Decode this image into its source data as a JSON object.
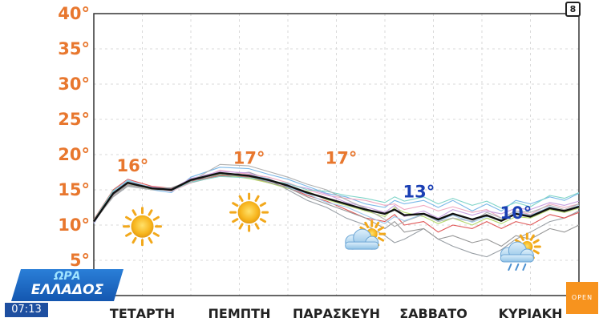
{
  "badge_number": "8",
  "clock_time": "07:13",
  "logo": {
    "line1": "ΩΡΑ",
    "line2": "ΕΛΛΑΔΟΣ"
  },
  "channel": "OPEN",
  "colors": {
    "ytick": "#e8772e",
    "mean_line": "#111111",
    "orange_annot": "#e8772e",
    "blue_annot": "#1a3fb4"
  },
  "chart_data": {
    "type": "line",
    "title": "",
    "xlabel": "",
    "ylabel": "",
    "ylim": [
      0,
      40
    ],
    "xlim": [
      0,
      5
    ],
    "grid": true,
    "yticks": [
      {
        "value": 40,
        "label": "40°"
      },
      {
        "value": 35,
        "label": "35°"
      },
      {
        "value": 30,
        "label": "30°"
      },
      {
        "value": 25,
        "label": "25°"
      },
      {
        "value": 20,
        "label": "20°"
      },
      {
        "value": 15,
        "label": "15°"
      },
      {
        "value": 10,
        "label": "10°"
      },
      {
        "value": 5,
        "label": "5°"
      }
    ],
    "xticks": [
      {
        "value": 0.5,
        "label": "ΤΕΤΑΡΤΗ"
      },
      {
        "value": 1.5,
        "label": "ΠΕΜΠΤΗ"
      },
      {
        "value": 2.5,
        "label": "ΠΑΡΑΣΚΕΥΗ"
      },
      {
        "value": 3.5,
        "label": "ΣΑΒΒΑΤΟ"
      },
      {
        "value": 4.5,
        "label": "ΚΥΡΙΑΚΗ"
      }
    ],
    "mean_series": {
      "x": [
        0,
        0.2,
        0.35,
        0.6,
        0.8,
        1.0,
        1.3,
        1.6,
        1.8,
        2.0,
        2.2,
        2.4,
        2.6,
        2.8,
        3.0,
        3.1,
        3.2,
        3.4,
        3.55,
        3.7,
        3.9,
        4.05,
        4.2,
        4.35,
        4.5,
        4.7,
        4.85,
        5.0
      ],
      "values": [
        10.5,
        14.5,
        16.0,
        15.2,
        15.0,
        16.4,
        17.4,
        17.0,
        16.4,
        15.6,
        14.6,
        13.8,
        13.0,
        12.2,
        11.6,
        12.2,
        11.4,
        11.6,
        10.8,
        11.6,
        10.8,
        11.4,
        10.6,
        11.6,
        11.2,
        12.4,
        12.0,
        12.6
      ]
    },
    "ensemble_series": [
      {
        "color": "#9aa0a6",
        "values": [
          10.5,
          14.0,
          15.5,
          15.0,
          15.2,
          16.0,
          17.0,
          17.5,
          16.5,
          15.0,
          13.5,
          12.5,
          11.0,
          10.0,
          8.5,
          7.5,
          8.0,
          9.5,
          8.0,
          7.0,
          6.0,
          5.5,
          6.5,
          8.0,
          9.0,
          10.5,
          11.0,
          12.0
        ]
      },
      {
        "color": "#7ab8e8",
        "values": [
          10.2,
          14.8,
          16.2,
          15.0,
          14.6,
          16.8,
          18.2,
          18.0,
          17.2,
          16.5,
          15.5,
          14.5,
          14.0,
          13.0,
          12.5,
          13.5,
          13.0,
          13.5,
          12.5,
          13.5,
          12.0,
          13.0,
          12.0,
          13.5,
          13.0,
          14.0,
          13.5,
          14.5
        ]
      },
      {
        "color": "#e05757",
        "values": [
          10.8,
          15.0,
          16.5,
          15.5,
          15.2,
          16.2,
          17.0,
          16.8,
          16.0,
          15.4,
          14.2,
          13.4,
          12.2,
          11.0,
          10.5,
          11.5,
          10.0,
          10.5,
          9.0,
          10.0,
          9.5,
          10.5,
          9.5,
          10.5,
          10.0,
          11.5,
          11.0,
          11.8
        ]
      },
      {
        "color": "#f0a8c0",
        "values": [
          10.4,
          14.2,
          15.8,
          15.3,
          14.8,
          16.0,
          17.8,
          17.2,
          16.8,
          16.0,
          15.0,
          14.2,
          13.8,
          13.5,
          12.8,
          13.0,
          12.2,
          12.8,
          12.0,
          12.6,
          11.8,
          12.2,
          11.0,
          12.0,
          11.5,
          13.0,
          12.5,
          13.0
        ]
      },
      {
        "color": "#b5d96e",
        "values": [
          10.6,
          14.6,
          15.9,
          15.1,
          15.0,
          16.5,
          17.2,
          16.6,
          16.0,
          15.2,
          14.8,
          13.6,
          12.8,
          12.0,
          11.2,
          12.5,
          11.8,
          11.2,
          10.2,
          11.0,
          10.0,
          11.0,
          10.2,
          11.2,
          11.0,
          12.2,
          11.8,
          12.4
        ]
      },
      {
        "color": "#c7a0e0",
        "values": [
          10.3,
          14.4,
          16.1,
          15.4,
          15.1,
          16.6,
          17.6,
          17.4,
          16.2,
          15.8,
          15.2,
          14.4,
          13.2,
          12.6,
          11.8,
          12.8,
          11.2,
          12.0,
          11.0,
          12.2,
          11.4,
          12.0,
          11.6,
          12.4,
          12.2,
          13.2,
          12.8,
          13.4
        ]
      },
      {
        "color": "#999999",
        "values": [
          10.5,
          14.3,
          15.7,
          15.2,
          15.3,
          16.3,
          17.1,
          16.9,
          16.1,
          15.3,
          14.0,
          13.0,
          12.0,
          11.0,
          9.5,
          10.5,
          9.0,
          9.5,
          8.0,
          8.5,
          7.5,
          8.0,
          7.0,
          8.5,
          8.0,
          9.5,
          9.0,
          10.0
        ]
      },
      {
        "color": "#7fd4c8",
        "values": [
          10.7,
          14.9,
          16.3,
          15.3,
          14.9,
          16.1,
          16.9,
          16.7,
          16.3,
          15.9,
          15.0,
          14.8,
          14.2,
          13.8,
          13.2,
          14.0,
          13.4,
          14.0,
          13.0,
          13.8,
          12.8,
          13.4,
          12.4,
          13.2,
          12.6,
          14.2,
          13.8,
          14.6
        ]
      },
      {
        "color": "#b0b0b0",
        "values": [
          10.4,
          14.1,
          15.6,
          15.0,
          15.0,
          16.2,
          18.6,
          18.4,
          17.6,
          16.8,
          15.8,
          15.0,
          13.6,
          12.4,
          10.8,
          9.8,
          10.5,
          11.5,
          10.5,
          11.0,
          10.5,
          11.8,
          11.0,
          12.0,
          11.8,
          12.8,
          12.2,
          13.0
        ]
      },
      {
        "color": "#9fc9ec",
        "values": [
          10.6,
          14.7,
          16.4,
          15.2,
          15.1,
          16.4,
          17.3,
          17.1,
          16.6,
          15.4,
          14.4,
          13.2,
          12.6,
          11.4,
          10.2,
          11.2,
          10.6,
          11.6,
          10.6,
          11.4,
          10.4,
          11.2,
          10.8,
          11.8,
          11.4,
          12.6,
          12.0,
          12.8
        ]
      }
    ],
    "annotations": [
      {
        "x": 0.4,
        "y": 17.6,
        "text": "16°",
        "color": "#e8772e"
      },
      {
        "x": 1.6,
        "y": 18.7,
        "text": "17°",
        "color": "#e8772e"
      },
      {
        "x": 2.55,
        "y": 18.7,
        "text": "17°",
        "color": "#e8772e"
      },
      {
        "x": 3.35,
        "y": 13.9,
        "text": "13°",
        "color": "#1a3fb4"
      },
      {
        "x": 4.35,
        "y": 10.9,
        "text": "10°",
        "color": "#1a3fb4"
      }
    ],
    "weather_icons": [
      {
        "x": 0.5,
        "y": 9.8,
        "icon": "sun-icon"
      },
      {
        "x": 1.6,
        "y": 11.8,
        "icon": "sun-icon"
      },
      {
        "x": 2.75,
        "y": 7.6,
        "icon": "partly-cloudy-icon"
      },
      {
        "x": 4.35,
        "y": 5.8,
        "icon": "partly-cloudy-rain-icon"
      }
    ]
  }
}
